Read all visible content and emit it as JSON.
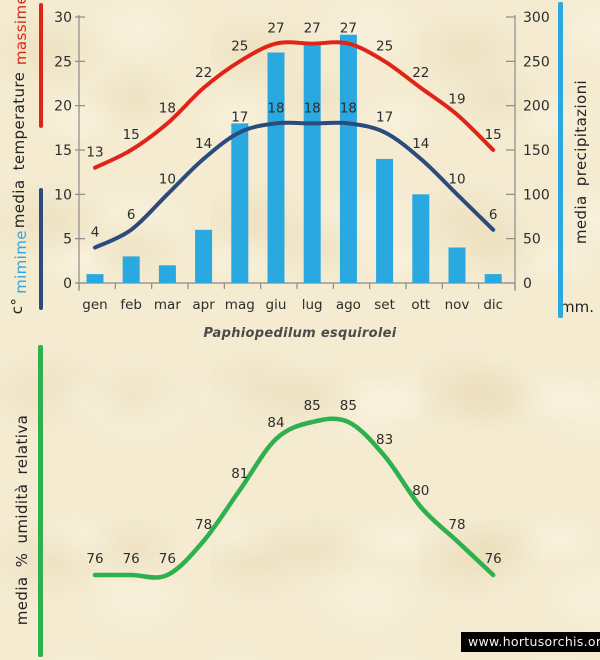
{
  "title": "Paphiopedilum esquirolei",
  "website": "www.hortusorchis.org",
  "colors": {
    "background": "#f4ebd1",
    "red": "#e02518",
    "dark_blue": "#2a4b7c",
    "light_blue": "#29a9df",
    "green": "#2db04d",
    "axis_gray": "#8a8a8a",
    "label_text": "#2d2d2d"
  },
  "sidebar": {
    "massime": "massime",
    "media_temperature": "media temperature",
    "mimime": "mimime",
    "celsius": "c°",
    "umidita": "media % umidità relativa"
  },
  "right_labels": {
    "precipitazioni": "media precipitazioni",
    "mm": "mm."
  },
  "chart_data": [
    {
      "type": "bar",
      "title": "Paphiopedilum esquirolei",
      "categories": [
        "gen",
        "feb",
        "mar",
        "apr",
        "mag",
        "giu",
        "lug",
        "ago",
        "set",
        "ott",
        "nov",
        "dic"
      ],
      "series": [
        {
          "name": "massime",
          "type": "line",
          "axis": "left",
          "color_key": "red",
          "values": [
            13,
            15,
            18,
            22,
            25,
            27,
            27,
            27,
            25,
            22,
            19,
            15
          ]
        },
        {
          "name": "mimime",
          "type": "line",
          "axis": "left",
          "color_key": "dark_blue",
          "values": [
            4,
            6,
            10,
            14,
            17,
            18,
            18,
            18,
            17,
            14,
            10,
            6
          ]
        },
        {
          "name": "media precipitazioni",
          "type": "bar",
          "axis": "right",
          "color_key": "light_blue",
          "values": [
            10,
            30,
            20,
            60,
            180,
            260,
            270,
            280,
            140,
            100,
            40,
            10
          ]
        }
      ],
      "left_axis": {
        "label": "media temperature",
        "unit": "c°",
        "min": 0,
        "max": 30,
        "step": 5
      },
      "right_axis": {
        "label": "media precipitazioni",
        "unit": "mm.",
        "min": 0,
        "max": 300,
        "step": 50
      },
      "grid": false,
      "data_labels": true,
      "legend_position": "left-margin"
    },
    {
      "type": "line",
      "categories": [
        "gen",
        "feb",
        "mar",
        "apr",
        "mag",
        "giu",
        "lug",
        "ago",
        "set",
        "ott",
        "nov",
        "dic"
      ],
      "series": [
        {
          "name": "media % umidità relativa",
          "color_key": "green",
          "values": [
            76,
            76,
            76,
            78,
            81,
            84,
            85,
            85,
            83,
            80,
            78,
            76
          ]
        }
      ],
      "xlabel": "",
      "ylabel": "media % umidità relativa",
      "x_axis_visible": false,
      "grid": false,
      "data_labels": true
    }
  ]
}
